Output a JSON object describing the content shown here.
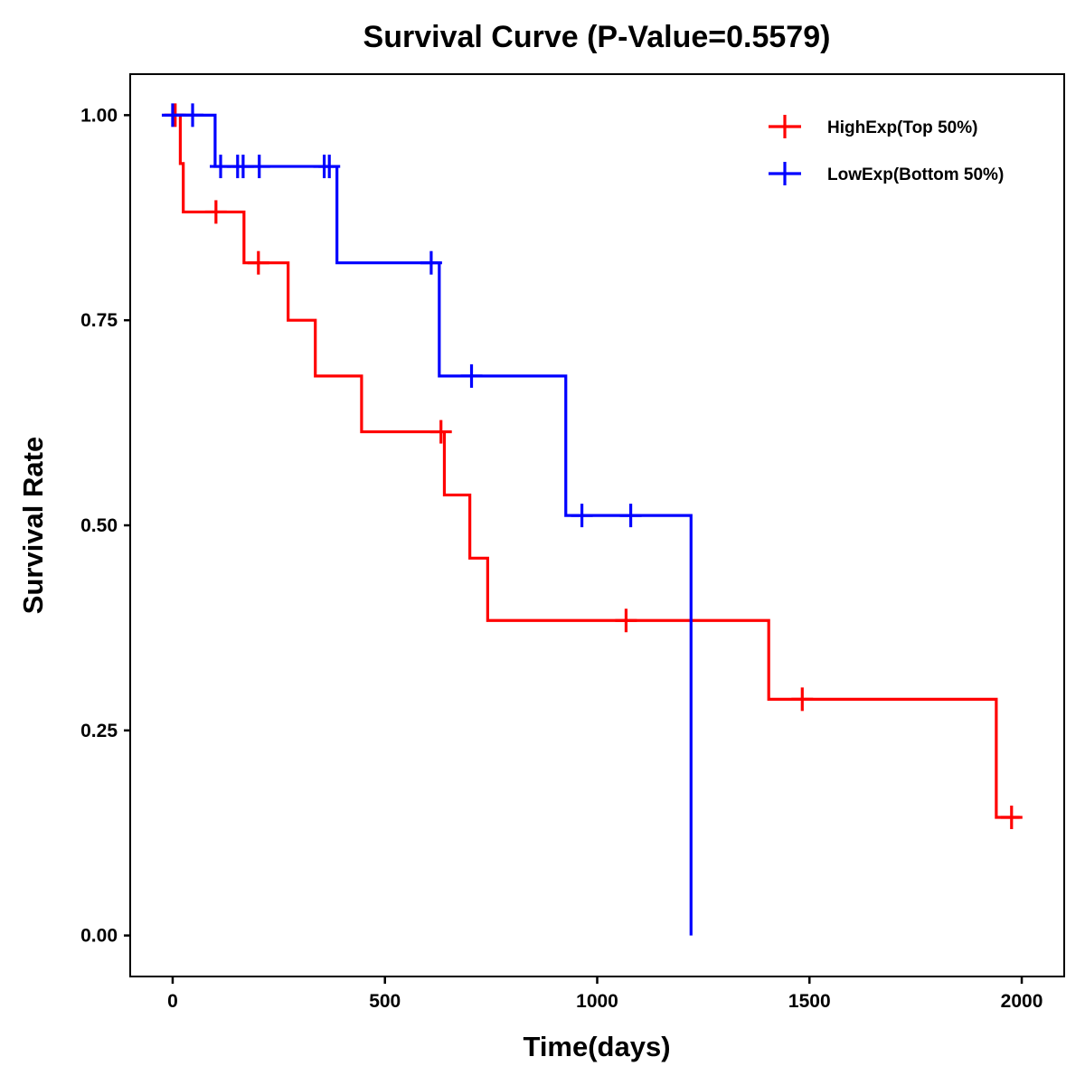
{
  "chart_data": {
    "type": "line",
    "subtype": "kaplan-meier-step",
    "title": "Survival Curve (P-Value=0.5579)",
    "xlabel": "Time(days)",
    "ylabel": "Survival Rate",
    "xlim": [
      -100,
      2100
    ],
    "ylim": [
      -0.05,
      1.05
    ],
    "xticks": [
      0,
      500,
      1000,
      1500,
      2000
    ],
    "xtick_labels": [
      "0",
      "500",
      "1000",
      "1500",
      "2000"
    ],
    "yticks": [
      0,
      0.25,
      0.5,
      0.75,
      1.0
    ],
    "ytick_labels": [
      "0.00",
      "0.25",
      "0.50",
      "0.75",
      "1.00"
    ],
    "grid": false,
    "legend_position": "top-right",
    "series": [
      {
        "name": "HighExp(Top 50%)",
        "color": "#ff0000",
        "steps": [
          {
            "t": 0,
            "s": 1.0
          },
          {
            "t": 18,
            "s": 0.941
          },
          {
            "t": 25,
            "s": 0.882
          },
          {
            "t": 168,
            "s": 0.82
          },
          {
            "t": 272,
            "s": 0.75
          },
          {
            "t": 336,
            "s": 0.682
          },
          {
            "t": 445,
            "s": 0.614
          },
          {
            "t": 640,
            "s": 0.537
          },
          {
            "t": 700,
            "s": 0.46
          },
          {
            "t": 742,
            "s": 0.384
          },
          {
            "t": 1404,
            "s": 0.288
          },
          {
            "t": 1940,
            "s": 0.144
          }
        ],
        "end_time": 1995,
        "censored": [
          {
            "t": 6,
            "s": 1.0
          },
          {
            "t": 102,
            "s": 0.882
          },
          {
            "t": 202,
            "s": 0.82
          },
          {
            "t": 632,
            "s": 0.614
          },
          {
            "t": 1068,
            "s": 0.384
          },
          {
            "t": 1483,
            "s": 0.288
          },
          {
            "t": 1976,
            "s": 0.144
          }
        ]
      },
      {
        "name": "LowExp(Bottom 50%)",
        "color": "#0000ff",
        "steps": [
          {
            "t": 0,
            "s": 1.0
          },
          {
            "t": 100,
            "s": 0.9375
          },
          {
            "t": 387,
            "s": 0.82
          },
          {
            "t": 628,
            "s": 0.682
          },
          {
            "t": 926,
            "s": 0.512
          },
          {
            "t": 1221,
            "s": 0.0
          }
        ],
        "end_time": 1221,
        "censored": [
          {
            "t": 0,
            "s": 1.0
          },
          {
            "t": 47,
            "s": 1.0
          },
          {
            "t": 113,
            "s": 0.9375
          },
          {
            "t": 153,
            "s": 0.9375
          },
          {
            "t": 166,
            "s": 0.9375
          },
          {
            "t": 204,
            "s": 0.9375
          },
          {
            "t": 357,
            "s": 0.9375
          },
          {
            "t": 369,
            "s": 0.9375
          },
          {
            "t": 609,
            "s": 0.82
          },
          {
            "t": 704,
            "s": 0.682
          },
          {
            "t": 964,
            "s": 0.512
          },
          {
            "t": 1079,
            "s": 0.512
          }
        ]
      }
    ]
  }
}
